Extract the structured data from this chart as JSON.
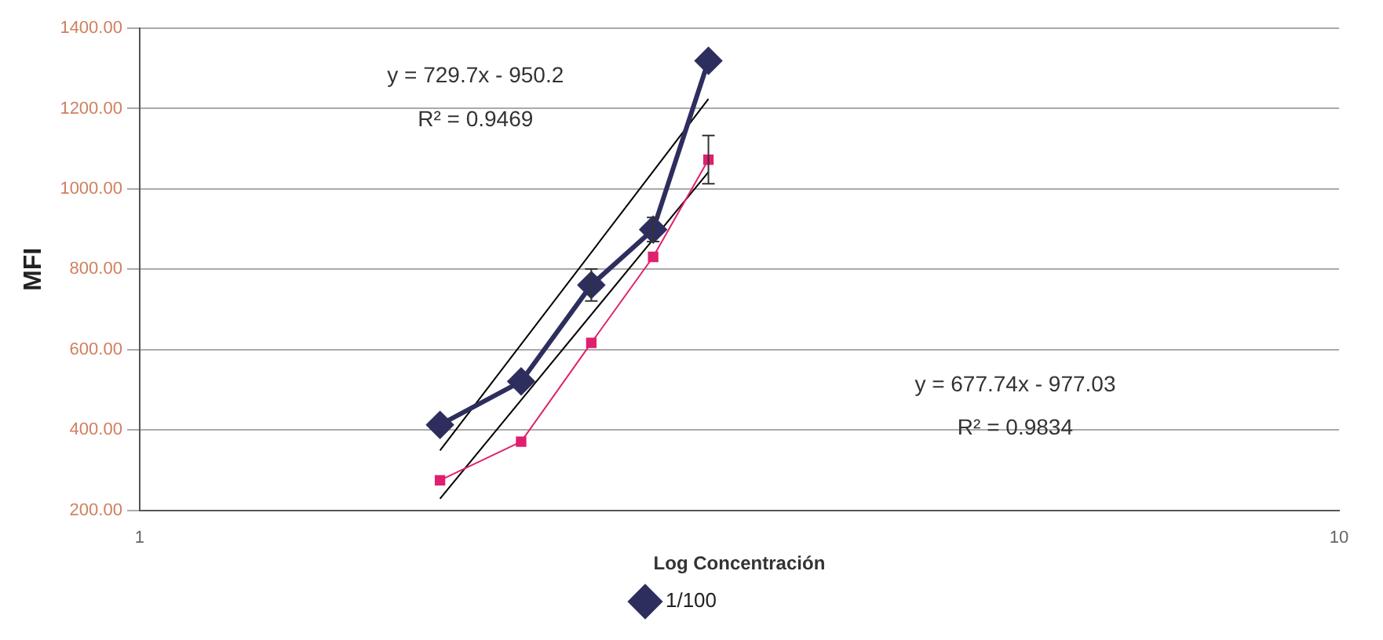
{
  "chart_data": {
    "type": "line",
    "xlabel": "Log Concentración",
    "ylabel": "MFI",
    "xlim": [
      1,
      10
    ],
    "xticks": [
      1,
      10
    ],
    "log": "x",
    "ylim": [
      200,
      1400
    ],
    "yticks": [
      {
        "value": 200,
        "label": "200.00"
      },
      {
        "value": 400,
        "label": "400.00"
      },
      {
        "value": 600,
        "label": "600.00"
      },
      {
        "value": 800,
        "label": "800.00"
      },
      {
        "value": 1000,
        "label": "1000.00"
      },
      {
        "value": 1200,
        "label": "1200.00"
      },
      {
        "value": 1400,
        "label": "1400.00"
      }
    ],
    "grid": "y",
    "legend": "bottom",
    "series": [
      {
        "name": "1/100",
        "color": "#2e2e5e",
        "marker": "diamond",
        "x": [
          1.78,
          2.08,
          2.38,
          2.68,
          2.98
        ],
        "values": [
          413,
          521,
          761,
          899,
          1319
        ],
        "errors": [
          null,
          null,
          40,
          30,
          null
        ]
      },
      {
        "color": "#e0206e",
        "marker": "square",
        "x": [
          1.78,
          2.08,
          2.38,
          2.68,
          2.98
        ],
        "values": [
          275,
          371,
          617,
          831,
          1073
        ],
        "errors": [
          null,
          null,
          null,
          null,
          60
        ]
      },
      {
        "type": "line",
        "color": "#000000",
        "marker": "none",
        "x": [
          1.78,
          2.98
        ],
        "values": [
          349,
          1224
        ]
      },
      {
        "type": "line",
        "color": "#000000",
        "marker": "none",
        "x": [
          1.78,
          2.98
        ],
        "values": [
          229,
          1042
        ]
      }
    ],
    "annotations": [
      "y = 729.7x - 950.2",
      "R² = 0.9469",
      "y = 677.74x - 977.03",
      "R² = 0.9834"
    ]
  }
}
